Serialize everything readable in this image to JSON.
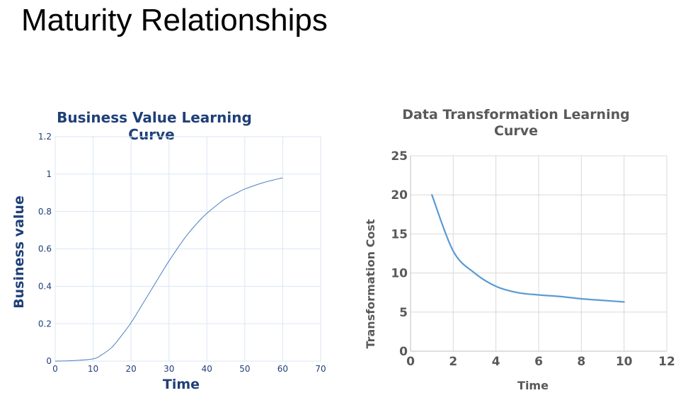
{
  "slide": {
    "title": "Maturity Relationships"
  },
  "chart_data": [
    {
      "type": "line",
      "title": "Business Value Learning Curve",
      "xlabel": "Time",
      "ylabel": "Business value",
      "xlim": [
        0,
        70
      ],
      "ylim": [
        0,
        1.2
      ],
      "xticks": [
        "0",
        "10",
        "20",
        "30",
        "40",
        "50",
        "60",
        "70"
      ],
      "yticks": [
        "0",
        "0.2",
        "0.4",
        "0.6",
        "0.8",
        "1",
        "1.2"
      ],
      "grid": true,
      "legend": "none",
      "colors": {
        "title": "#1f3f78",
        "line": "#4a7fc1",
        "grid": "#dbe6f3",
        "ticks": "#1f3f78"
      },
      "series": [
        {
          "x": [
            0,
            5,
            10,
            12,
            15,
            18,
            20,
            22,
            25,
            28,
            30,
            33,
            35,
            38,
            40,
            43,
            45,
            48,
            50,
            55,
            60
          ],
          "y": [
            0,
            0.003,
            0.012,
            0.03,
            0.075,
            0.15,
            0.205,
            0.27,
            0.37,
            0.47,
            0.535,
            0.625,
            0.68,
            0.75,
            0.79,
            0.84,
            0.87,
            0.9,
            0.92,
            0.955,
            0.98
          ]
        }
      ]
    },
    {
      "type": "line",
      "title": "Data Transformation Learning Curve",
      "xlabel": "Time",
      "ylabel": "Transformation Cost",
      "xlim": [
        0,
        12
      ],
      "ylim": [
        0,
        25
      ],
      "xticks": [
        "0",
        "2",
        "4",
        "6",
        "8",
        "10",
        "12"
      ],
      "yticks": [
        "0",
        "5",
        "10",
        "15",
        "20",
        "25"
      ],
      "grid": true,
      "legend": "none",
      "colors": {
        "title": "#595959",
        "line": "#5b9bd5",
        "grid": "#d9d9d9",
        "ticks": "#595959"
      },
      "series": [
        {
          "x": [
            1,
            2,
            3,
            4,
            5,
            6,
            7,
            8,
            9,
            10
          ],
          "y": [
            20,
            12.8,
            10,
            8.3,
            7.5,
            7.2,
            7.0,
            6.7,
            6.5,
            6.3
          ]
        }
      ]
    }
  ]
}
